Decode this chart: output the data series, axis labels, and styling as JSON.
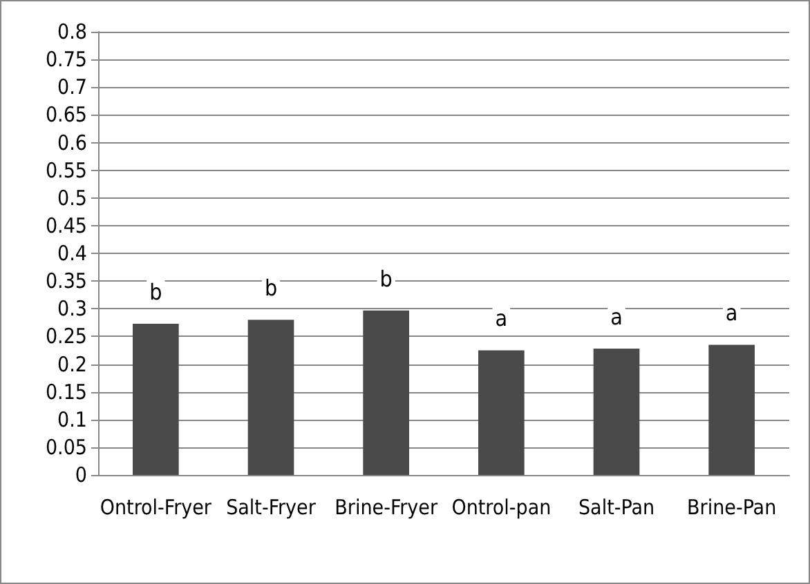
{
  "chart_data": {
    "type": "bar",
    "categories": [
      "Ontrol-Fryer",
      "Salt-Fryer",
      "Brine-Fryer",
      "Ontrol-pan",
      "Salt-Pan",
      "Brine-Pan"
    ],
    "values": [
      0.273,
      0.28,
      0.297,
      0.225,
      0.228,
      0.235
    ],
    "color": "#4a4a4a",
    "ylim": [
      0,
      0.8
    ],
    "yticks": [
      0,
      0.05,
      0.1,
      0.15,
      0.2,
      0.25,
      0.3,
      0.35,
      0.4,
      0.45,
      0.5,
      0.55,
      0.6,
      0.65,
      0.7,
      0.75,
      0.8
    ],
    "grid": "y",
    "annotations": [
      "b",
      "b",
      "b",
      "a",
      "a",
      "a"
    ]
  }
}
